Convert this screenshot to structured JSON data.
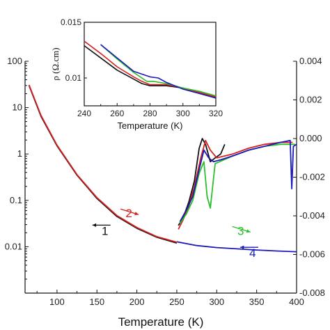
{
  "chart_data": [
    {
      "type": "line",
      "xlabel": "Temperature (K)",
      "xlim": [
        60,
        400
      ],
      "xticks": [
        "100",
        "150",
        "200",
        "250",
        "300",
        "350",
        "400"
      ],
      "y_left": {
        "scale": "log",
        "lim": [
          0.001,
          100
        ],
        "ticks": [
          "0.01",
          "0.1",
          "1",
          "10",
          "100"
        ]
      },
      "y_right": {
        "lim": [
          -0.008,
          0.004
        ],
        "ticks": [
          "0.004",
          "0.002",
          "0.000",
          "-0.002",
          "-0.004",
          "-0.006",
          "-0.008"
        ]
      },
      "series": [
        {
          "color": "#111111",
          "axis": "left",
          "x": [
            65,
            80,
            100,
            125,
            150,
            175,
            200,
            225,
            250
          ],
          "y": [
            30,
            6.5,
            1.5,
            0.35,
            0.11,
            0.045,
            0.025,
            0.016,
            0.012
          ]
        },
        {
          "color": "#d62020",
          "axis": "left",
          "x": [
            65,
            80,
            100,
            125,
            150,
            175,
            200,
            225,
            250
          ],
          "y": [
            31,
            6.8,
            1.55,
            0.36,
            0.115,
            0.047,
            0.026,
            0.0165,
            0.0125
          ]
        },
        {
          "color": "#1a1ab8",
          "axis": "left",
          "x": [
            250,
            275,
            300,
            325,
            350,
            375,
            400
          ],
          "y": [
            0.0128,
            0.0106,
            0.0096,
            0.009,
            0.0085,
            0.0081,
            0.0078
          ]
        },
        {
          "color": "#111111",
          "axis": "right",
          "x": [
            252,
            258,
            265,
            272,
            278,
            282,
            286,
            292,
            298,
            305,
            310
          ],
          "y": [
            -0.0045,
            -0.0041,
            -0.0033,
            -0.0022,
            -0.0005,
            0.0,
            -0.0003,
            -0.0012,
            -0.001,
            -0.0008,
            -0.0003
          ]
        },
        {
          "color": "#d62020",
          "axis": "right",
          "x": [
            252,
            258,
            265,
            272,
            280,
            286,
            292,
            300,
            320,
            340,
            360,
            380,
            395
          ],
          "y": [
            -0.0047,
            -0.0042,
            -0.0035,
            -0.0025,
            -0.001,
            -0.0001,
            -0.0006,
            -0.001,
            -0.0008,
            -0.0005,
            -0.0003,
            -0.0002,
            -0.0002
          ]
        },
        {
          "color": "#2bbf2b",
          "axis": "right",
          "x": [
            254,
            262,
            270,
            278,
            284,
            288,
            292,
            298,
            320,
            340,
            360,
            380,
            398
          ],
          "y": [
            -0.0044,
            -0.0039,
            -0.0032,
            -0.0018,
            -0.0012,
            -0.003,
            -0.0036,
            -0.0013,
            -0.0009,
            -0.0006,
            -0.0004,
            -0.0003,
            -0.0003
          ]
        },
        {
          "color": "#1a1ab8",
          "axis": "right",
          "x": [
            254,
            262,
            270,
            278,
            284,
            290,
            296,
            305,
            320,
            340,
            360,
            380,
            392,
            394,
            396,
            400
          ],
          "y": [
            -0.0043,
            -0.0037,
            -0.003,
            -0.0016,
            -0.0006,
            -0.001,
            -0.0012,
            -0.0011,
            -0.0009,
            -0.0006,
            -0.0004,
            -0.0002,
            -0.0001,
            -0.0026,
            -0.0004,
            -0.0003
          ]
        }
      ],
      "annotations": [
        {
          "text": "1",
          "color": "#111111",
          "x": 160,
          "y": 0.018,
          "arrow": "left"
        },
        {
          "text": "2",
          "color": "#d62020",
          "x": 190,
          "y": 0.043,
          "arrow": "right"
        },
        {
          "text": "3",
          "color": "#2bbf2b",
          "x": 330,
          "y": 0.018,
          "arrow": "right"
        },
        {
          "text": "4",
          "color": "#1a1ab8",
          "x": 345,
          "y": 0.006,
          "arrow": "left"
        }
      ]
    },
    {
      "type": "line",
      "position": "inset top",
      "xlabel": "Temperature (K)",
      "ylabel": "ρ (Ω.cm)",
      "xlim": [
        240,
        320
      ],
      "ylim": [
        0.0075,
        0.015
      ],
      "xticks": [
        "240",
        "260",
        "280",
        "300",
        "320"
      ],
      "yticks": [
        "0.01",
        "0.015"
      ],
      "series": [
        {
          "color": "#111111",
          "x": [
            240,
            250,
            260,
            270,
            275,
            280,
            290,
            300,
            310,
            320
          ],
          "y": [
            0.0129,
            0.0118,
            0.0107,
            0.0099,
            0.0095,
            0.0093,
            0.0093,
            0.0091,
            0.0087,
            0.0082
          ]
        },
        {
          "color": "#d62020",
          "x": [
            240,
            250,
            260,
            270,
            275,
            280,
            290,
            300,
            310,
            320
          ],
          "y": [
            0.0133,
            0.0122,
            0.011,
            0.0101,
            0.0097,
            0.0094,
            0.0094,
            0.0091,
            0.0087,
            0.0083
          ]
        },
        {
          "color": "#2bbf2b",
          "x": [
            250,
            260,
            270,
            278,
            282,
            290,
            300,
            310,
            320
          ],
          "y": [
            0.013,
            0.0117,
            0.0105,
            0.0097,
            0.0097,
            0.0095,
            0.0091,
            0.0088,
            0.0084
          ]
        },
        {
          "color": "#1a1ab8",
          "x": [
            250,
            260,
            270,
            280,
            285,
            290,
            300,
            310,
            320
          ],
          "y": [
            0.013,
            0.0118,
            0.0106,
            0.0101,
            0.01,
            0.0096,
            0.009,
            0.0086,
            0.0082
          ]
        }
      ]
    }
  ]
}
